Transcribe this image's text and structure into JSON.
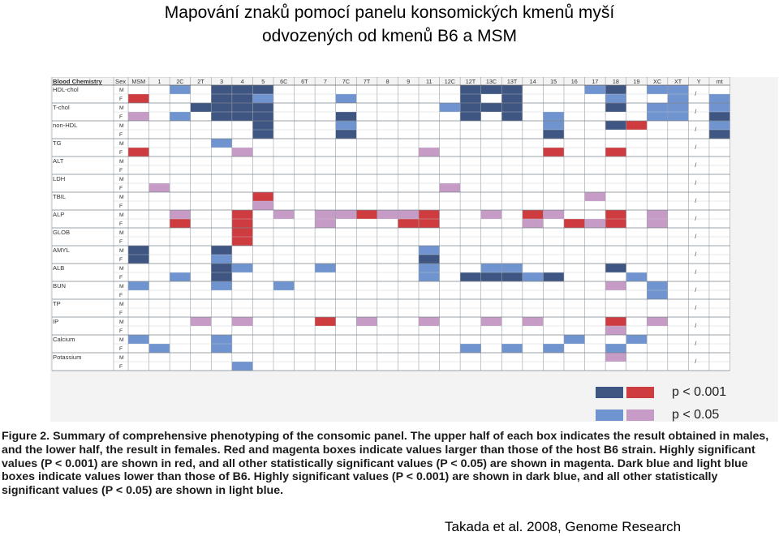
{
  "slide": {
    "title_line1": "Mapování znaků pomocí panelu konsomických kmenů myší",
    "title_line2": "odvozených od kmenů B6 a MSM",
    "citation": "Takada et al. 2008, Genome Research"
  },
  "figure": {
    "corner_label": "Blood Chemistry",
    "sex_header": "Sex",
    "columns": [
      "MSM",
      "1",
      "2C",
      "2T",
      "3",
      "4",
      "5",
      "6C",
      "6T",
      "7",
      "7C",
      "7T",
      "8",
      "9",
      "11",
      "12C",
      "12T",
      "13C",
      "13T",
      "14",
      "15",
      "16",
      "17",
      "18",
      "19",
      "XC",
      "XT",
      "Y",
      "mt"
    ],
    "sex_labels": [
      "M",
      "F"
    ],
    "traits": [
      "HDL-chol",
      "T-chol",
      "non-HDL",
      "TG",
      "ALT",
      "LDH",
      "TBIL",
      "ALP",
      "GLOB",
      "AMYL",
      "ALB",
      "BUN",
      "TP",
      "IP",
      "Calcium",
      "Potassium"
    ],
    "y_column_mark": "/",
    "cell_codes": {
      "D": "lower, P < 0.001",
      "L": "lower, P < 0.05",
      "R": "higher, P < 0.001",
      "P": "higher, P < 0.05"
    },
    "colors": {
      "D": "#3f5582",
      "L": "#7094cf",
      "R": "#cf3c40",
      "P": "#c69cc7",
      "grid": "#9aa0a8",
      "background": "#f3f3f4"
    },
    "rows": [
      {
        "trait": "HDL-chol",
        "sex": "M",
        "cells": {
          "2C": "L",
          "3": "D",
          "4": "D",
          "5": "D",
          "12T": "D",
          "13C": "D",
          "13T": "D",
          "17": "L",
          "18": "D",
          "XC": "L",
          "XT": "L"
        }
      },
      {
        "trait": "HDL-chol",
        "sex": "F",
        "cells": {
          "MSM": "R",
          "3": "D",
          "4": "D",
          "5": "L",
          "7C": "L",
          "12T": "D",
          "13T": "D",
          "18": "L",
          "XT": "L",
          "mt": "L"
        }
      },
      {
        "trait": "T-chol",
        "sex": "M",
        "cells": {
          "2T": "D",
          "3": "D",
          "4": "D",
          "5": "D",
          "12C": "L",
          "12T": "D",
          "13C": "D",
          "13T": "D",
          "18": "D",
          "XC": "L",
          "XT": "L",
          "mt": "L"
        }
      },
      {
        "trait": "T-chol",
        "sex": "F",
        "cells": {
          "MSM": "P",
          "2C": "L",
          "3": "D",
          "4": "D",
          "5": "D",
          "7C": "D",
          "12T": "D",
          "13T": "D",
          "15": "L",
          "XC": "L",
          "XT": "L",
          "mt": "D"
        }
      },
      {
        "trait": "non-HDL",
        "sex": "M",
        "cells": {
          "5": "D",
          "7C": "L",
          "15": "L",
          "18": "D",
          "19": "R",
          "mt": "L"
        }
      },
      {
        "trait": "non-HDL",
        "sex": "F",
        "cells": {
          "5": "D",
          "7C": "D",
          "15": "D",
          "mt": "D"
        }
      },
      {
        "trait": "TG",
        "sex": "M",
        "cells": {
          "3": "L"
        }
      },
      {
        "trait": "TG",
        "sex": "F",
        "cells": {
          "MSM": "R",
          "4": "P",
          "11": "P",
          "15": "R",
          "18": "R"
        }
      },
      {
        "trait": "ALT",
        "sex": "M",
        "cells": {}
      },
      {
        "trait": "ALT",
        "sex": "F",
        "cells": {}
      },
      {
        "trait": "LDH",
        "sex": "M",
        "cells": {}
      },
      {
        "trait": "LDH",
        "sex": "F",
        "cells": {
          "1": "P",
          "12C": "P"
        }
      },
      {
        "trait": "TBIL",
        "sex": "M",
        "cells": {
          "5": "R",
          "17": "P"
        }
      },
      {
        "trait": "TBIL",
        "sex": "F",
        "cells": {
          "5": "P"
        }
      },
      {
        "trait": "ALP",
        "sex": "M",
        "cells": {
          "2C": "P",
          "4": "R",
          "6C": "P",
          "7": "P",
          "7C": "P",
          "7T": "R",
          "8": "P",
          "9": "P",
          "11": "R",
          "13C": "P",
          "14": "R",
          "15": "P",
          "18": "R",
          "XC": "P"
        }
      },
      {
        "trait": "ALP",
        "sex": "F",
        "cells": {
          "2C": "R",
          "4": "R",
          "7": "P",
          "9": "R",
          "11": "R",
          "14": "P",
          "16": "R",
          "17": "P",
          "18": "R",
          "XC": "P"
        }
      },
      {
        "trait": "GLOB",
        "sex": "M",
        "cells": {
          "4": "R"
        }
      },
      {
        "trait": "GLOB",
        "sex": "F",
        "cells": {
          "4": "R"
        }
      },
      {
        "trait": "AMYL",
        "sex": "M",
        "cells": {
          "MSM": "D",
          "3": "D",
          "11": "L"
        }
      },
      {
        "trait": "AMYL",
        "sex": "F",
        "cells": {
          "MSM": "D",
          "3": "L",
          "11": "D"
        }
      },
      {
        "trait": "ALB",
        "sex": "M",
        "cells": {
          "3": "D",
          "4": "L",
          "7": "L",
          "11": "L",
          "13C": "L",
          "13T": "L",
          "18": "D"
        }
      },
      {
        "trait": "ALB",
        "sex": "F",
        "cells": {
          "2C": "L",
          "3": "D",
          "11": "L",
          "12T": "D",
          "13C": "D",
          "13T": "D",
          "14": "L",
          "15": "D",
          "19": "L"
        }
      },
      {
        "trait": "BUN",
        "sex": "M",
        "cells": {
          "MSM": "L",
          "3": "L",
          "6C": "L",
          "18": "P",
          "XC": "L"
        }
      },
      {
        "trait": "BUN",
        "sex": "F",
        "cells": {
          "XC": "L"
        }
      },
      {
        "trait": "TP",
        "sex": "M",
        "cells": {}
      },
      {
        "trait": "TP",
        "sex": "F",
        "cells": {}
      },
      {
        "trait": "IP",
        "sex": "M",
        "cells": {
          "2T": "P",
          "4": "P",
          "7": "R",
          "7T": "P",
          "11": "P",
          "13C": "P",
          "14": "P",
          "18": "R",
          "XC": "P"
        }
      },
      {
        "trait": "IP",
        "sex": "F",
        "cells": {
          "18": "P"
        }
      },
      {
        "trait": "Calcium",
        "sex": "M",
        "cells": {
          "MSM": "L",
          "3": "L",
          "16": "L",
          "19": "L"
        }
      },
      {
        "trait": "Calcium",
        "sex": "F",
        "cells": {
          "1": "L",
          "3": "L",
          "12T": "L",
          "13T": "L",
          "15": "L",
          "18": "L"
        }
      },
      {
        "trait": "Potassium",
        "sex": "M",
        "cells": {
          "18": "P"
        }
      },
      {
        "trait": "Potassium",
        "sex": "F",
        "cells": {
          "4": "L"
        }
      }
    ],
    "legend": {
      "high_label": "p < 0.001",
      "low_label": "p < 0.05"
    },
    "caption": {
      "label": "Figure 2.",
      "text": "Summary of comprehensive phenotyping of the consomic panel. The upper half of each box indicates the result obtained in males, and the lower half, the result in females. Red and magenta boxes indicate values larger than those of the host B6 strain. Highly significant values (P < 0.001) are shown in red, and all other statistically significant values (P < 0.05) are shown in magenta. Dark blue and light blue boxes indicate values lower than those of B6. Highly significant values (P < 0.001) are shown in dark blue, and all other statistically significant values (P < 0.05) are shown in light blue."
    }
  }
}
